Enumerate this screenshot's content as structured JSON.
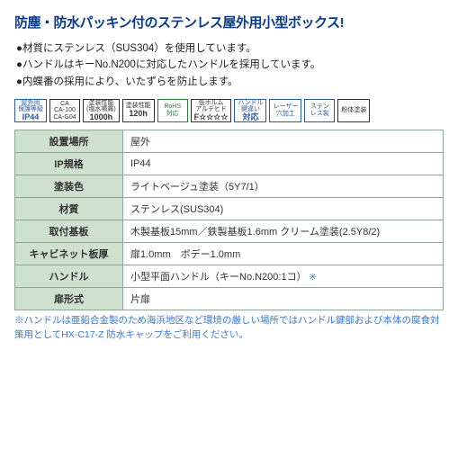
{
  "headline": "防塵・防水パッキン付のステンレス屋外用小型ボックス!",
  "bullets": [
    "●材質にステンレス（SUS304）を使用しています。",
    "●ハンドルはキーNo.N200に対応したハンドルを採用しています。",
    "●内蝶番の採用により、いたずらを防止します。"
  ],
  "badges": [
    {
      "line1": "屋外用",
      "line2": "保護等級",
      "big": "IP44",
      "cls": "blue"
    },
    {
      "line1": "CA",
      "line2": "CA-100",
      "line3": "CA-G04",
      "cls": ""
    },
    {
      "line1": "塗装性能",
      "line2": "(塩水噴霧)",
      "big": "1000h",
      "cls": ""
    },
    {
      "line1": "塗装性能",
      "line2": "",
      "big": "120h",
      "cls": ""
    },
    {
      "line1": "RoHS",
      "line2": "対応",
      "big": "",
      "cls": "green"
    },
    {
      "line1": "低ホルム",
      "line2": "アルデヒド",
      "big": "F☆☆☆☆",
      "cls": ""
    },
    {
      "line1": "ハンドル",
      "line2": "鍵違い",
      "big": "対応",
      "cls": "blue"
    },
    {
      "line1": "レーザー",
      "line2": "穴加工",
      "big": "",
      "cls": "blue"
    },
    {
      "line1": "ステン",
      "line2": "レス製",
      "big": "",
      "cls": "blue"
    },
    {
      "line1": "粉体塗装",
      "line2": "",
      "big": "",
      "cls": ""
    }
  ],
  "spec": [
    {
      "label": "設置場所",
      "value": "屋外"
    },
    {
      "label": "IP規格",
      "value": "IP44"
    },
    {
      "label": "塗装色",
      "value": "ライトベージュ塗装（5Y7/1）"
    },
    {
      "label": "材質",
      "value": "ステンレス(SUS304)"
    },
    {
      "label": "取付基板",
      "value": "木製基板15mm／鉄製基板1.6mm クリーム塗装(2.5Y8/2)"
    },
    {
      "label": "キャビネット板厚",
      "value": "扉1.0mm　ボデー1.0mm"
    },
    {
      "label": "ハンドル",
      "value": "小型平面ハンドル（キーNo.N200:1コ）",
      "note": true
    },
    {
      "label": "扉形式",
      "value": "片扉"
    }
  ],
  "footnote": "※ハンドルは亜鉛合金製のため海浜地区など環境の厳しい場所ではハンドル鍵部および本体の腐食対策用としてHX-C17-Z 防水キャップをご利用ください。"
}
